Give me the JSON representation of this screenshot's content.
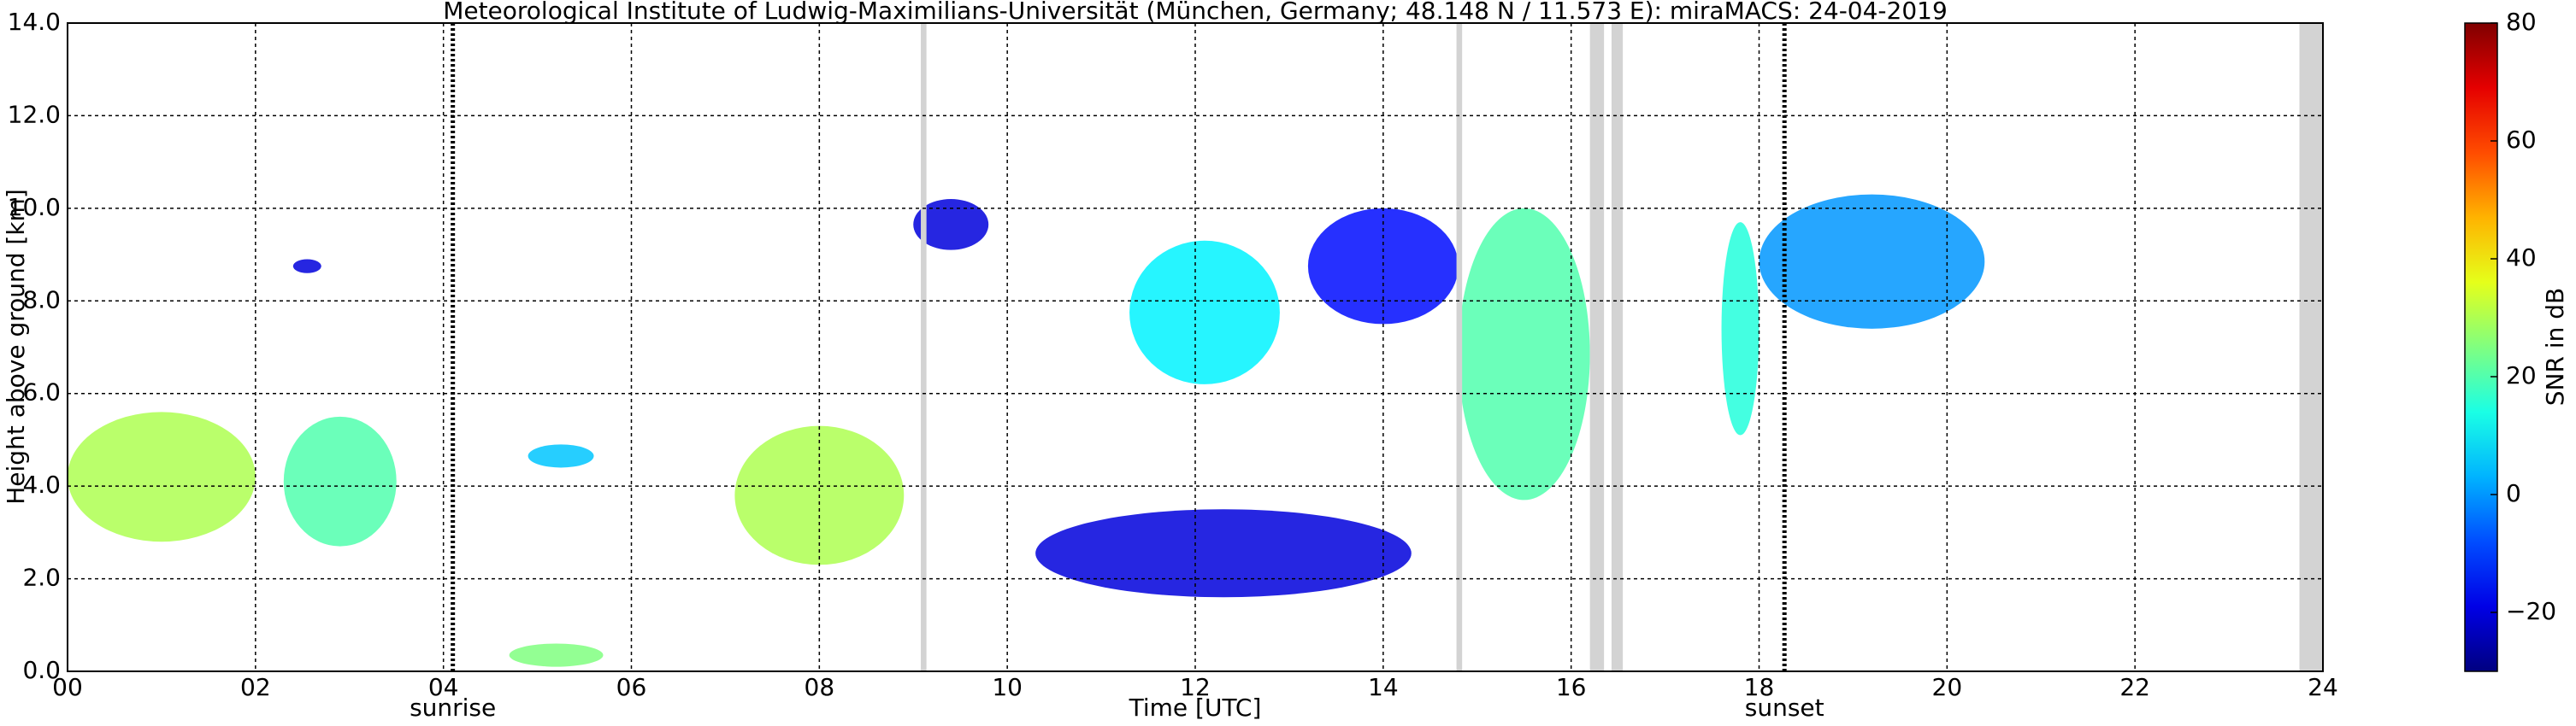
{
  "chart_data": {
    "type": "radar-heatmap",
    "title": "Meteorological Institute of Ludwig-Maximilians-Universität (München, Germany; 48.148 N / 11.573 E):    miraMACS: 24-04-2019",
    "xlabel": "Time [UTC]",
    "ylabel": "Height above ground [km]",
    "colorbar_label": "SNR in dB",
    "xlim": [
      0,
      24
    ],
    "ylim": [
      0,
      14
    ],
    "clim": [
      -30,
      80
    ],
    "grid": true,
    "xticks": [
      {
        "value": 0,
        "label": "00"
      },
      {
        "value": 2,
        "label": "02"
      },
      {
        "value": 4,
        "label": "04"
      },
      {
        "value": 6,
        "label": "06"
      },
      {
        "value": 8,
        "label": "08"
      },
      {
        "value": 10,
        "label": "10"
      },
      {
        "value": 12,
        "label": "12"
      },
      {
        "value": 14,
        "label": "14"
      },
      {
        "value": 16,
        "label": "16"
      },
      {
        "value": 18,
        "label": "18"
      },
      {
        "value": 20,
        "label": "20"
      },
      {
        "value": 22,
        "label": "22"
      },
      {
        "value": 24,
        "label": "24"
      }
    ],
    "yticks": [
      {
        "value": 0,
        "label": "0.0"
      },
      {
        "value": 2,
        "label": "2.0"
      },
      {
        "value": 4,
        "label": "4.0"
      },
      {
        "value": 6,
        "label": "6.0"
      },
      {
        "value": 8,
        "label": "8.0"
      },
      {
        "value": 10,
        "label": "10.0"
      },
      {
        "value": 12,
        "label": "12.0"
      },
      {
        "value": 14,
        "label": "14.0"
      }
    ],
    "cticks": [
      {
        "value": -20,
        "label": "−20"
      },
      0,
      20,
      40,
      60,
      80
    ],
    "sun_lines": [
      {
        "label": "sunrise",
        "time": 4.1
      },
      {
        "label": "sunset",
        "time": 18.27
      }
    ],
    "missing_data": [
      [
        9.08,
        9.14
      ],
      [
        14.78,
        14.84
      ],
      [
        16.2,
        16.35
      ],
      [
        16.43,
        16.55
      ],
      [
        23.75,
        24
      ]
    ],
    "echoes": [
      {
        "t0": 0,
        "t1": 2.0,
        "h0": 2.8,
        "h1": 5.6,
        "snr": 30
      },
      {
        "t0": 2.3,
        "t1": 3.5,
        "h0": 2.7,
        "h1": 5.5,
        "snr": 20
      },
      {
        "t0": 4.9,
        "t1": 5.6,
        "h0": 4.4,
        "h1": 4.9,
        "snr": 5
      },
      {
        "t0": 7.1,
        "t1": 8.9,
        "h0": 2.3,
        "h1": 5.3,
        "snr": 30
      },
      {
        "t0": 4.7,
        "t1": 5.7,
        "h0": 0.1,
        "h1": 0.6,
        "snr": 25
      },
      {
        "t0": 9.0,
        "t1": 9.8,
        "h0": 9.1,
        "h1": 10.2,
        "snr": -20
      },
      {
        "t0": 2.4,
        "t1": 2.7,
        "h0": 8.6,
        "h1": 8.9,
        "snr": -20
      },
      {
        "t0": 11.3,
        "t1": 12.9,
        "h0": 6.2,
        "h1": 9.3,
        "snr": 10
      },
      {
        "t0": 13.2,
        "t1": 14.8,
        "h0": 7.5,
        "h1": 10.0,
        "snr": -15
      },
      {
        "t0": 14.8,
        "t1": 16.2,
        "h0": 3.7,
        "h1": 10.0,
        "snr": 20
      },
      {
        "t0": 17.6,
        "t1": 18.0,
        "h0": 5.1,
        "h1": 9.7,
        "snr": 15
      },
      {
        "t0": 18.0,
        "t1": 20.4,
        "h0": 7.4,
        "h1": 10.3,
        "snr": 0
      },
      {
        "t0": 10.3,
        "t1": 14.3,
        "h0": 1.6,
        "h1": 3.5,
        "snr": -20
      }
    ]
  }
}
